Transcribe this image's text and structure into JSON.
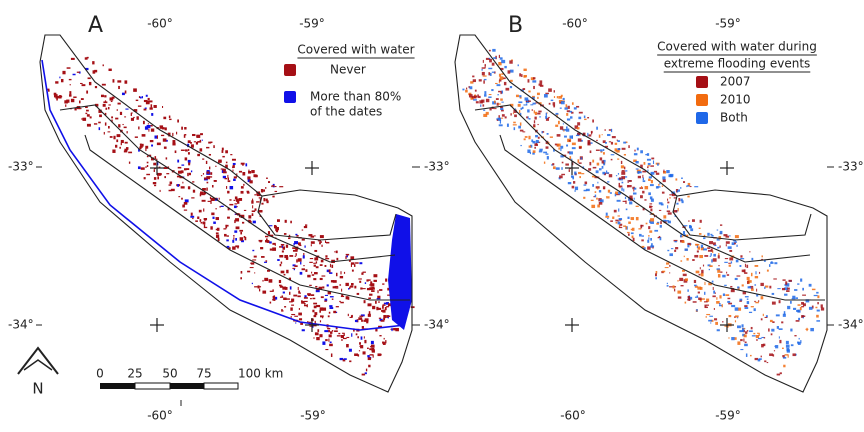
{
  "panels": [
    {
      "label": "A",
      "legend": {
        "title": [
          "Covered with water"
        ],
        "items": [
          {
            "label": [
              "Never"
            ],
            "color": "#a50f15"
          },
          {
            "label": [
              "More than 80%",
              "of the dates"
            ],
            "color": "#1010e8"
          }
        ]
      },
      "top_lon": [
        "-60°",
        "-59°"
      ],
      "bottom_lon": [
        "-60°",
        "-59°"
      ],
      "left_lat": [
        "-33°",
        "-34°"
      ],
      "right_lat": [
        "-33°",
        "-34°"
      ]
    },
    {
      "label": "B",
      "legend": {
        "title": [
          "Covered with water during",
          "extreme flooding events"
        ],
        "items": [
          {
            "label": [
              "2007"
            ],
            "color": "#a50f15"
          },
          {
            "label": [
              "2010"
            ],
            "color": "#f26b0f"
          },
          {
            "label": [
              "Both"
            ],
            "color": "#1f68e8"
          }
        ]
      },
      "top_lon": [
        "-60°",
        "-59°"
      ],
      "bottom_lon": [
        "-60°",
        "-59°"
      ],
      "right_lat": [
        "-33°",
        "-34°"
      ]
    }
  ],
  "north_arrow": "N",
  "scale_bar": [
    "0",
    "25",
    "50",
    "75",
    "100 km"
  ]
}
